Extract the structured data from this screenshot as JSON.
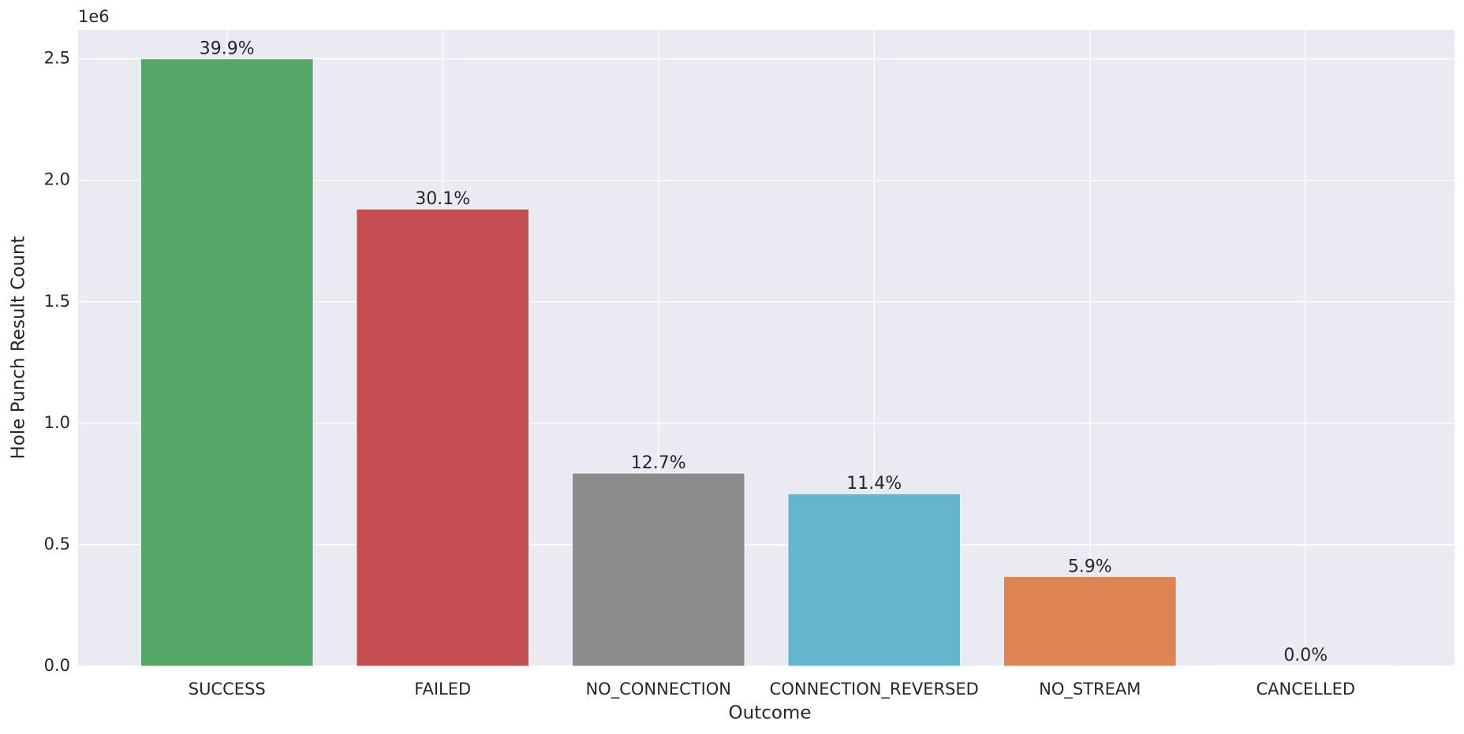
{
  "chart_data": {
    "type": "bar",
    "x_label": "Outcome",
    "y_label": "Hole Punch Result Count",
    "y_offset_label": "1e6",
    "categories": [
      "SUCCESS",
      "FAILED",
      "NO_CONNECTION",
      "CONNECTION_REVERSED",
      "NO_STREAM",
      "CANCELLED"
    ],
    "values": [
      2500000,
      1882000,
      795000,
      710000,
      369000,
      3000
    ],
    "percent_labels": [
      "39.9%",
      "30.1%",
      "12.7%",
      "11.4%",
      "5.9%",
      "0.0%"
    ],
    "colors": [
      "#55a868",
      "#c44e52",
      "#8c8c8c",
      "#64b5cd",
      "#dd8452",
      "#937860"
    ],
    "ylim": [
      0,
      2619000
    ],
    "yticks": [
      {
        "value": 0,
        "label": "0.0"
      },
      {
        "value": 500000,
        "label": "0.5"
      },
      {
        "value": 1000000,
        "label": "1.0"
      },
      {
        "value": 1500000,
        "label": "1.5"
      },
      {
        "value": 2000000,
        "label": "2.0"
      },
      {
        "value": 2500000,
        "label": "2.5"
      }
    ],
    "grid": true
  }
}
